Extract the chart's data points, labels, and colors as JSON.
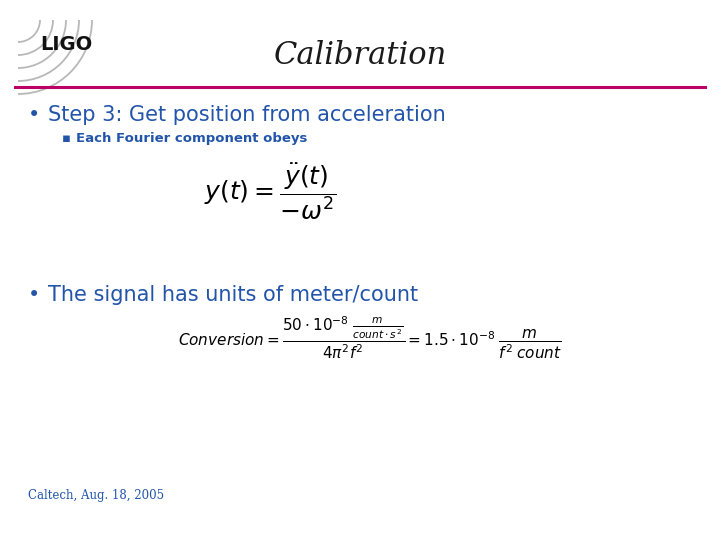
{
  "title": "Calibration",
  "title_fontsize": 22,
  "title_color": "#1a1a1a",
  "bg_color": "#ffffff",
  "line_color": "#bb0066",
  "bullet1_text": "Step 3: Get position from acceleration",
  "bullet1_color": "#2255aa",
  "bullet1_fontsize": 15,
  "sub_bullet_text": "Each Fourier component obeys",
  "sub_bullet_color": "#2255aa",
  "sub_bullet_fontsize": 9.5,
  "formula1_fontsize": 18,
  "formula1_color": "#000000",
  "bullet2_text": "The signal has units of meter/count",
  "bullet2_color": "#2255aa",
  "bullet2_fontsize": 15,
  "formula2_fontsize": 11,
  "formula2_color": "#000000",
  "footer_text": "Caltech, Aug. 18, 2005",
  "footer_color": "#2255aa",
  "footer_fontsize": 8.5,
  "ligo_text": "LIGO",
  "ligo_fontsize": 14,
  "ligo_color": "#111111"
}
